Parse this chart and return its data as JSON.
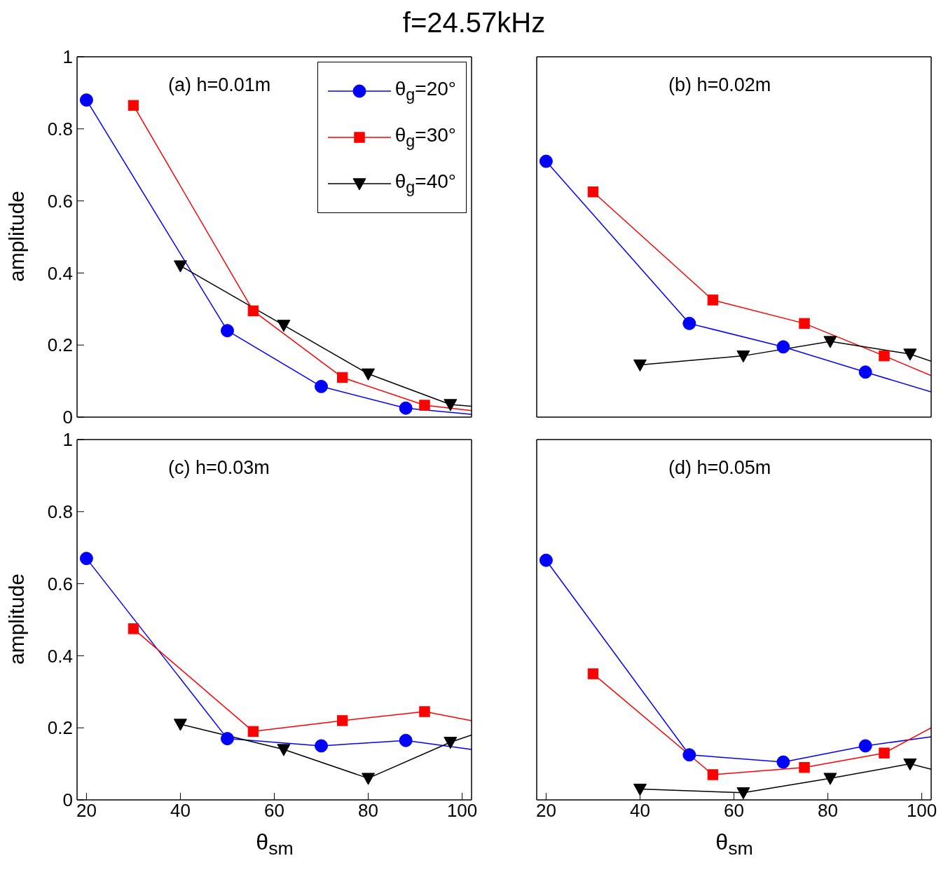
{
  "chart_data": [
    {
      "type": "line",
      "title": "f=24.57kHz",
      "ylabel": "amplitude",
      "annotations": [
        "(a) h=0.01m"
      ],
      "xlim": [
        18,
        102
      ],
      "ylim": [
        0,
        1
      ],
      "xticks": [
        20,
        40,
        60,
        80,
        100
      ],
      "yticks": [
        0,
        0.2,
        0.4,
        0.6,
        0.8,
        1
      ],
      "tick_labels": "y",
      "legend": "top right",
      "grid": false,
      "series": [
        {
          "name": "θ$_{g}$=20°",
          "color": "#0000ff",
          "marker": "circle",
          "x": [
            20,
            50,
            70,
            88,
            102
          ],
          "values": [
            0.88,
            0.24,
            0.085,
            0.025,
            0.008
          ]
        },
        {
          "name": "θ$_{g}$=30°",
          "color": "#ff0000",
          "marker": "square",
          "x": [
            30,
            55.5,
            74.5,
            92,
            102
          ],
          "values": [
            0.865,
            0.295,
            0.11,
            0.033,
            0.018
          ]
        },
        {
          "name": "θ$_{g}$=40°",
          "color": "#000000",
          "marker": "triangle",
          "x": [
            40,
            62,
            80,
            97.5,
            102
          ],
          "values": [
            0.42,
            0.255,
            0.12,
            0.035,
            0.03
          ]
        }
      ]
    },
    {
      "type": "line",
      "annotations": [
        "(b) h=0.02m"
      ],
      "xlim": [
        18,
        102
      ],
      "ylim": [
        0,
        1
      ],
      "xticks": [
        20,
        40,
        60,
        80,
        100
      ],
      "yticks": [
        0,
        0.2,
        0.4,
        0.6,
        0.8,
        1
      ],
      "tick_labels": false,
      "grid": false,
      "series": [
        {
          "color": "#0000ff",
          "marker": "circle",
          "x": [
            20,
            50.5,
            70.5,
            88,
            102
          ],
          "values": [
            0.71,
            0.26,
            0.195,
            0.125,
            0.07
          ]
        },
        {
          "color": "#ff0000",
          "marker": "square",
          "x": [
            30,
            55.5,
            75,
            92,
            102
          ],
          "values": [
            0.625,
            0.325,
            0.26,
            0.17,
            0.115
          ]
        },
        {
          "color": "#000000",
          "marker": "triangle",
          "x": [
            40,
            62,
            80.5,
            97.5,
            102
          ],
          "values": [
            0.145,
            0.17,
            0.21,
            0.175,
            0.155
          ]
        }
      ]
    },
    {
      "type": "line",
      "xlabel": "θ$_{sm}$",
      "ylabel": "amplitude",
      "annotations": [
        "(c) h=0.03m"
      ],
      "xlim": [
        18,
        102
      ],
      "ylim": [
        0,
        1
      ],
      "xticks": [
        20,
        40,
        60,
        80,
        100
      ],
      "yticks": [
        0,
        0.2,
        0.4,
        0.6,
        0.8,
        1
      ],
      "grid": false,
      "series": [
        {
          "color": "#0000ff",
          "marker": "circle",
          "x": [
            20,
            50,
            70,
            88,
            102
          ],
          "values": [
            0.67,
            0.17,
            0.15,
            0.165,
            0.14
          ]
        },
        {
          "color": "#ff0000",
          "marker": "square",
          "x": [
            30,
            55.5,
            74.5,
            92,
            102
          ],
          "values": [
            0.475,
            0.19,
            0.22,
            0.245,
            0.22
          ]
        },
        {
          "color": "#000000",
          "marker": "triangle",
          "x": [
            40,
            62,
            80,
            97.5,
            102
          ],
          "values": [
            0.21,
            0.14,
            0.06,
            0.16,
            0.18
          ]
        }
      ]
    },
    {
      "type": "line",
      "xlabel": "θ$_{sm}$",
      "annotations": [
        "(d) h=0.05m"
      ],
      "xlim": [
        18,
        102
      ],
      "ylim": [
        0,
        1
      ],
      "xticks": [
        20,
        40,
        60,
        80,
        100
      ],
      "yticks": [
        0,
        0.2,
        0.4,
        0.6,
        0.8,
        1
      ],
      "tick_labels": "x",
      "grid": false,
      "series": [
        {
          "color": "#0000ff",
          "marker": "circle",
          "x": [
            20,
            50.5,
            70.5,
            88,
            102
          ],
          "values": [
            0.665,
            0.125,
            0.105,
            0.15,
            0.175
          ]
        },
        {
          "color": "#ff0000",
          "marker": "square",
          "x": [
            30,
            55.5,
            75,
            92,
            102
          ],
          "values": [
            0.35,
            0.07,
            0.09,
            0.13,
            0.2
          ]
        },
        {
          "color": "#000000",
          "marker": "triangle",
          "x": [
            40,
            62,
            80.5,
            97.5,
            102
          ],
          "values": [
            0.03,
            0.02,
            0.06,
            0.1,
            0.085
          ]
        }
      ]
    }
  ]
}
